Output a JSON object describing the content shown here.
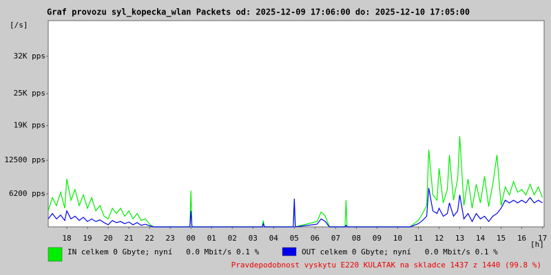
{
  "chart_data": {
    "type": "line",
    "title": "Graf provozu syl_kopecka_wlan Packets od: 2025-12-09 17:06:00 do: 2025-12-10 17:05:00",
    "y_unit": "[/s]",
    "x_unit": "[h]",
    "footer": "Pravdepodobnost vyskytu E220 KULATAK na skladce 1437 z 1440 (99.8 %)",
    "ylim": [
      0,
      38700
    ],
    "yticks": [
      {
        "value": 6200,
        "label": "6200 pps"
      },
      {
        "value": 12500,
        "label": "12500 pps"
      },
      {
        "value": 19000,
        "label": "19K pps"
      },
      {
        "value": 25000,
        "label": "25K pps"
      },
      {
        "value": 32000,
        "label": "32K pps"
      }
    ],
    "xlim": [
      17.1,
      41.08
    ],
    "xticks": [
      {
        "value": 18,
        "label": "18"
      },
      {
        "value": 19,
        "label": "19"
      },
      {
        "value": 20,
        "label": "20"
      },
      {
        "value": 21,
        "label": "21"
      },
      {
        "value": 22,
        "label": "22"
      },
      {
        "value": 23,
        "label": "23"
      },
      {
        "value": 24,
        "label": "00"
      },
      {
        "value": 25,
        "label": "01"
      },
      {
        "value": 26,
        "label": "02"
      },
      {
        "value": 27,
        "label": "03"
      },
      {
        "value": 28,
        "label": "04"
      },
      {
        "value": 29,
        "label": "05"
      },
      {
        "value": 30,
        "label": "06"
      },
      {
        "value": 31,
        "label": "07"
      },
      {
        "value": 32,
        "label": "08"
      },
      {
        "value": 33,
        "label": "09"
      },
      {
        "value": 34,
        "label": "10"
      },
      {
        "value": 35,
        "label": "11"
      },
      {
        "value": 36,
        "label": "12"
      },
      {
        "value": 37,
        "label": "13"
      },
      {
        "value": 38,
        "label": "14"
      },
      {
        "value": 39,
        "label": "15"
      },
      {
        "value": 40,
        "label": "16"
      },
      {
        "value": 41,
        "label": "17"
      }
    ],
    "grid": false,
    "x": [
      17.1,
      17.3,
      17.5,
      17.7,
      17.9,
      18.0,
      18.2,
      18.4,
      18.6,
      18.8,
      19.0,
      19.2,
      19.4,
      19.6,
      19.8,
      20.0,
      20.2,
      20.4,
      20.6,
      20.8,
      21.0,
      21.2,
      21.4,
      21.6,
      21.8,
      22.0,
      22.2,
      23.95,
      24.0,
      24.05,
      27.45,
      27.5,
      27.55,
      28.95,
      29.0,
      29.05,
      30.1,
      30.3,
      30.5,
      30.7,
      31.45,
      31.5,
      31.55,
      34.6,
      34.8,
      35.0,
      35.2,
      35.4,
      35.5,
      35.7,
      35.9,
      36.0,
      36.2,
      36.4,
      36.5,
      36.7,
      36.9,
      37.0,
      37.2,
      37.4,
      37.6,
      37.8,
      38.0,
      38.2,
      38.4,
      38.6,
      38.8,
      39.0,
      39.2,
      39.4,
      39.6,
      39.8,
      40.0,
      40.2,
      40.4,
      40.6,
      40.8,
      41.0
    ],
    "series": [
      {
        "name": "IN celkem 0 Gbyte; nyní   0.0 Mbit/s 0.1 %",
        "color": "#00ee00",
        "values": [
          3000,
          5500,
          4000,
          6500,
          3500,
          9000,
          5000,
          7000,
          4000,
          6000,
          3500,
          5500,
          3000,
          4000,
          2000,
          1500,
          3500,
          2500,
          3500,
          2000,
          3000,
          1500,
          2500,
          1200,
          1500,
          500,
          0,
          0,
          6800,
          0,
          0,
          1200,
          0,
          0,
          4000,
          0,
          1000,
          2800,
          2000,
          0,
          0,
          5000,
          0,
          0,
          600,
          1200,
          2500,
          4000,
          14500,
          6000,
          5000,
          11000,
          4500,
          7000,
          13500,
          5000,
          9000,
          17000,
          4000,
          9000,
          3500,
          8000,
          4500,
          9500,
          3800,
          8000,
          13500,
          4000,
          7500,
          6000,
          8500,
          6500,
          7000,
          6000,
          8000,
          6000,
          7500,
          5500
        ]
      },
      {
        "name": "OUT celkem 0 Gbyte; nyní   0.0 Mbit/s 0.1 %",
        "color": "#0000ee",
        "values": [
          1500,
          2500,
          1500,
          2200,
          1200,
          3000,
          1500,
          2000,
          1200,
          1800,
          1000,
          1500,
          1000,
          1300,
          800,
          400,
          1200,
          800,
          1000,
          600,
          900,
          400,
          800,
          300,
          500,
          200,
          0,
          0,
          3000,
          0,
          0,
          600,
          0,
          0,
          5300,
          0,
          500,
          1500,
          1000,
          0,
          0,
          300,
          0,
          0,
          300,
          600,
          1200,
          2000,
          7300,
          3000,
          2500,
          3500,
          2000,
          2500,
          4500,
          2000,
          3000,
          6000,
          1500,
          2500,
          1000,
          2500,
          1500,
          2000,
          1000,
          2000,
          2500,
          3500,
          5000,
          4500,
          5000,
          4500,
          5000,
          4500,
          5500,
          4500,
          5000,
          4500
        ]
      }
    ]
  }
}
